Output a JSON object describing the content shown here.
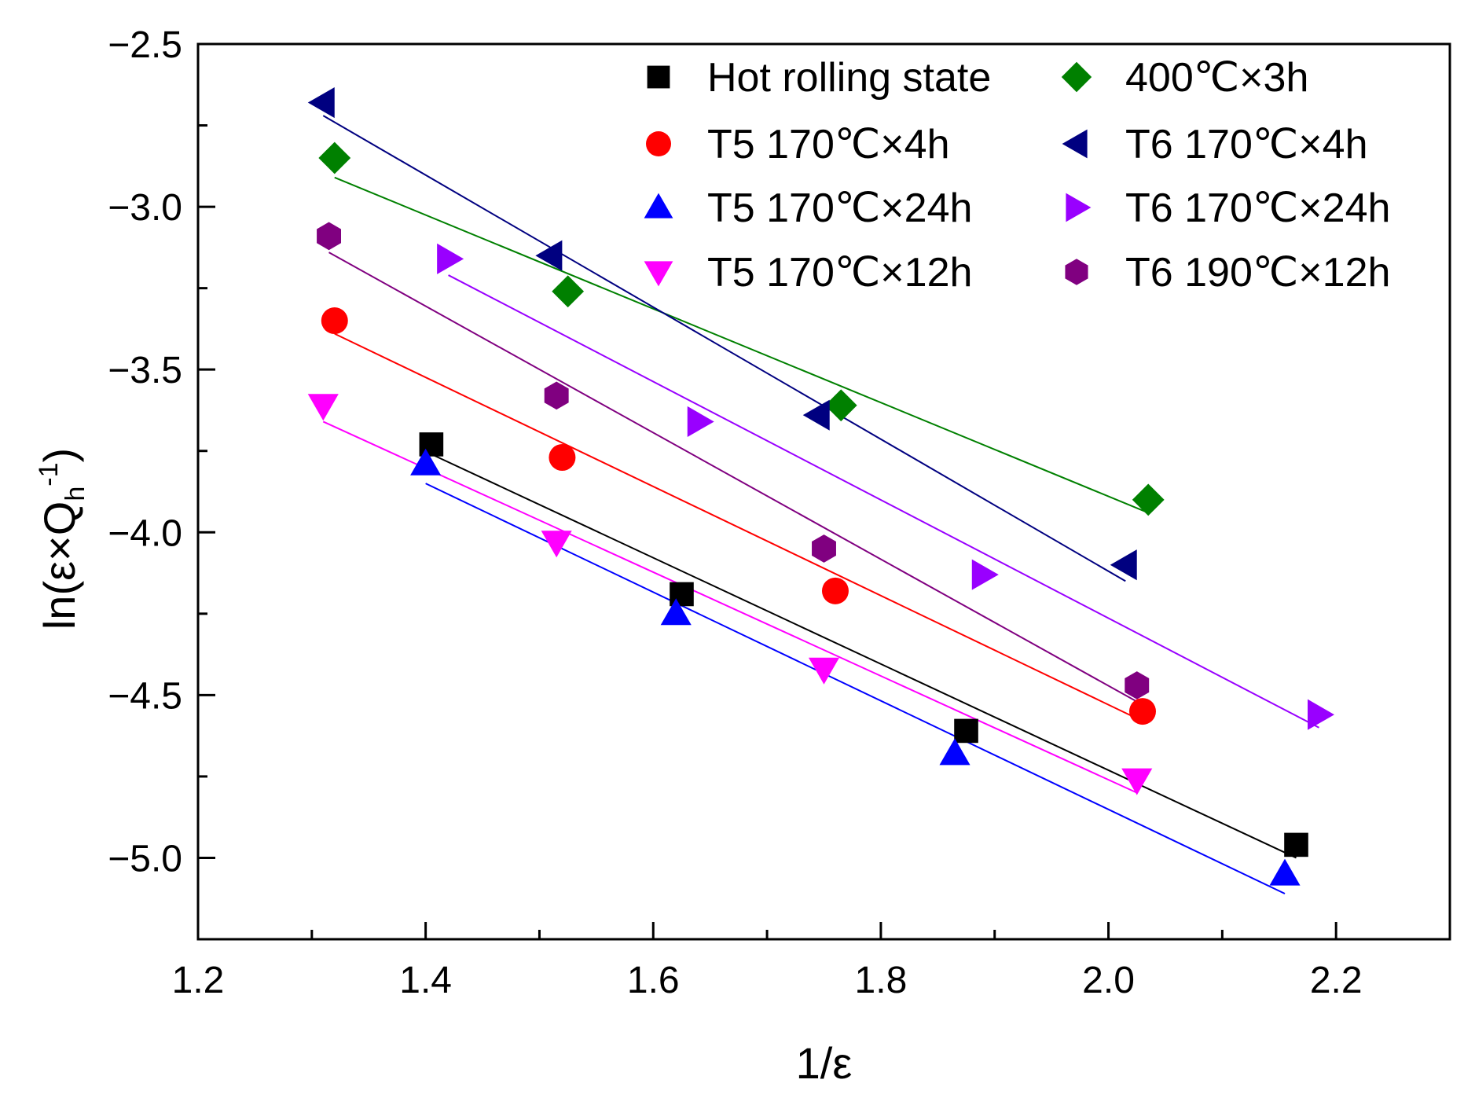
{
  "chart_data": {
    "type": "scatter",
    "xlabel": "1/ε",
    "ylabel": {
      "prefix": "ln(ε×Q",
      "subscript": "h",
      "superscript": "-1",
      "suffix": ")"
    },
    "xlim": [
      1.2,
      2.3
    ],
    "ylim": [
      -5.25,
      -2.5
    ],
    "xticks": [
      1.2,
      1.4,
      1.6,
      1.8,
      2.0,
      2.2
    ],
    "xtick_labels": [
      "1.2",
      "1.4",
      "1.6",
      "1.8",
      "2.0",
      "2.2"
    ],
    "yticks": [
      -2.5,
      -3.0,
      -3.5,
      -4.0,
      -4.5,
      -5.0
    ],
    "ytick_labels": [
      "−2.5",
      "−3.0",
      "−3.5",
      "−4.0",
      "−4.5",
      "−5.0"
    ],
    "grid": false,
    "legend_position": "top-right",
    "fit_lines": true,
    "series": [
      {
        "name": "Hot rolling state",
        "marker": "square",
        "color": "#000000",
        "x": [
          1.405,
          1.625,
          1.875,
          2.165
        ],
        "y": [
          -3.73,
          -4.19,
          -4.61,
          -4.96
        ],
        "fit": {
          "x": [
            1.405,
            2.165
          ],
          "y": [
            -3.76,
            -5.0
          ]
        }
      },
      {
        "name": "T5 170℃×4h",
        "marker": "circle",
        "color": "#ff0000",
        "x": [
          1.32,
          1.52,
          1.76,
          2.03
        ],
        "y": [
          -3.35,
          -3.77,
          -4.18,
          -4.55
        ],
        "fit": {
          "x": [
            1.32,
            2.03
          ],
          "y": [
            -3.39,
            -4.58
          ]
        }
      },
      {
        "name": "T5 170℃×24h",
        "marker": "triangle-up",
        "color": "#0000ff",
        "x": [
          1.4,
          1.62,
          1.865,
          2.155
        ],
        "y": [
          -3.79,
          -4.25,
          -4.68,
          -5.05
        ],
        "fit": {
          "x": [
            1.4,
            2.155
          ],
          "y": [
            -3.85,
            -5.11
          ]
        }
      },
      {
        "name": "T5 170℃×12h",
        "marker": "triangle-down",
        "color": "#ff00ff",
        "x": [
          1.31,
          1.515,
          1.75,
          2.025
        ],
        "y": [
          -3.61,
          -4.03,
          -4.42,
          -4.76
        ],
        "fit": {
          "x": [
            1.31,
            2.025
          ],
          "y": [
            -3.66,
            -4.8
          ]
        }
      },
      {
        "name": "400℃×3h",
        "marker": "diamond",
        "color": "#008000",
        "x": [
          1.32,
          1.525,
          1.765,
          2.035
        ],
        "y": [
          -2.85,
          -3.26,
          -3.61,
          -3.9
        ],
        "fit": {
          "x": [
            1.32,
            2.035
          ],
          "y": [
            -2.91,
            -3.94
          ]
        }
      },
      {
        "name": "T6 170℃×4h",
        "marker": "triangle-left",
        "color": "#000080",
        "x": [
          1.31,
          1.51,
          1.745,
          2.015
        ],
        "y": [
          -2.68,
          -3.15,
          -3.64,
          -4.1
        ],
        "fit": {
          "x": [
            1.31,
            2.015
          ],
          "y": [
            -2.72,
            -4.15
          ]
        }
      },
      {
        "name": "T6 170℃×24h",
        "marker": "triangle-right",
        "color": "#9900ff",
        "x": [
          1.42,
          1.64,
          1.89,
          2.185
        ],
        "y": [
          -3.16,
          -3.66,
          -4.13,
          -4.56
        ],
        "fit": {
          "x": [
            1.42,
            2.185
          ],
          "y": [
            -3.21,
            -4.6
          ]
        }
      },
      {
        "name": "T6 190℃×12h",
        "marker": "hexagon",
        "color": "#800080",
        "x": [
          1.315,
          1.515,
          1.75,
          2.025
        ],
        "y": [
          -3.09,
          -3.58,
          -4.05,
          -4.47
        ],
        "fit": {
          "x": [
            1.315,
            2.025
          ],
          "y": [
            -3.14,
            -4.52
          ]
        }
      }
    ],
    "legend_columns": [
      [
        "Hot rolling state",
        "T5 170℃×4h",
        "T5 170℃×24h",
        "T5 170℃×12h"
      ],
      [
        "400℃×3h",
        "T6 170℃×4h",
        "T6 170℃×24h",
        "T6 190℃×12h"
      ]
    ]
  }
}
